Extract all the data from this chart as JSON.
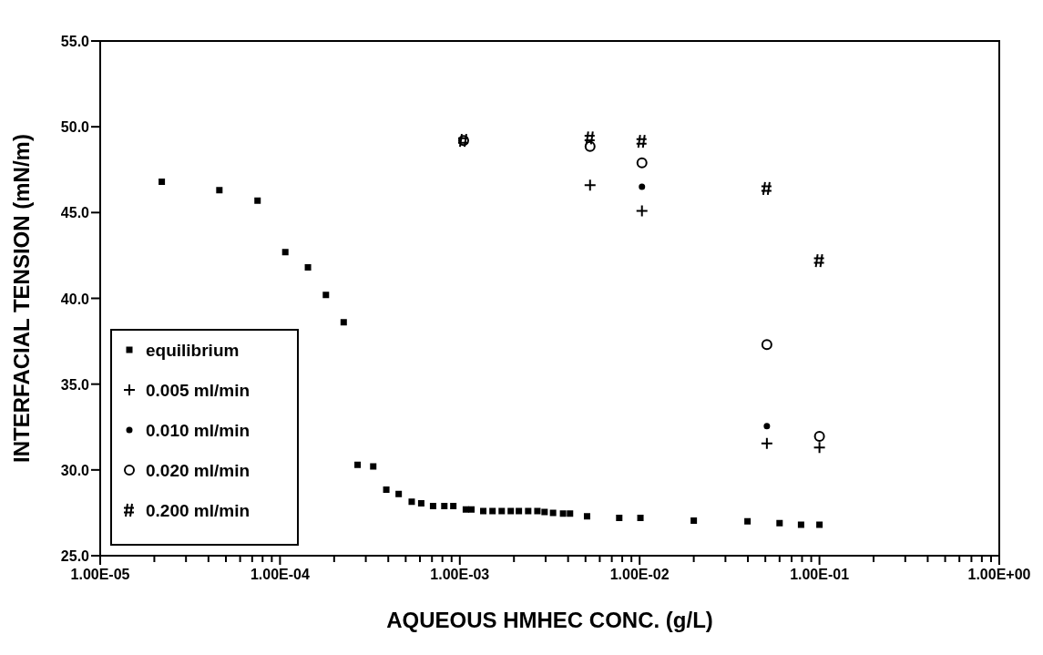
{
  "chart_data": {
    "type": "scatter",
    "xlabel": "AQUEOUS HMHEC CONC. (g/L)",
    "ylabel": "INTERFACIAL TENSION (mN/m)",
    "log": "x",
    "legend": "bottom left",
    "grid": false,
    "xlim": [
      1e-05,
      1
    ],
    "ylim": [
      25,
      55
    ],
    "xticks": [
      {
        "value": 1e-05,
        "label": "1.00E-05"
      },
      {
        "value": 2e-05,
        "label": null
      },
      {
        "value": 3e-05,
        "label": null
      },
      {
        "value": 4e-05,
        "label": null
      },
      {
        "value": 5e-05,
        "label": null
      },
      {
        "value": 6e-05,
        "label": null
      },
      {
        "value": 7e-05,
        "label": null
      },
      {
        "value": 8e-05,
        "label": null
      },
      {
        "value": 9e-05,
        "label": null
      },
      {
        "value": 0.0001,
        "label": "1.00E-04"
      },
      {
        "value": 0.0002,
        "label": null
      },
      {
        "value": 0.0003,
        "label": null
      },
      {
        "value": 0.0004,
        "label": null
      },
      {
        "value": 0.0005,
        "label": null
      },
      {
        "value": 0.0006,
        "label": null
      },
      {
        "value": 0.0007,
        "label": null
      },
      {
        "value": 0.0008,
        "label": null
      },
      {
        "value": 0.0009,
        "label": null
      },
      {
        "value": 0.001,
        "label": "1.00E-03"
      },
      {
        "value": 0.002,
        "label": null
      },
      {
        "value": 0.003,
        "label": null
      },
      {
        "value": 0.004,
        "label": null
      },
      {
        "value": 0.005,
        "label": null
      },
      {
        "value": 0.006,
        "label": null
      },
      {
        "value": 0.007,
        "label": null
      },
      {
        "value": 0.008,
        "label": null
      },
      {
        "value": 0.009,
        "label": null
      },
      {
        "value": 0.01,
        "label": "1.00E-02"
      },
      {
        "value": 0.02,
        "label": null
      },
      {
        "value": 0.03,
        "label": null
      },
      {
        "value": 0.04,
        "label": null
      },
      {
        "value": 0.05,
        "label": null
      },
      {
        "value": 0.06,
        "label": null
      },
      {
        "value": 0.07,
        "label": null
      },
      {
        "value": 0.08,
        "label": null
      },
      {
        "value": 0.09,
        "label": null
      },
      {
        "value": 0.1,
        "label": "1.00E-01"
      },
      {
        "value": 0.2,
        "label": null
      },
      {
        "value": 0.3,
        "label": null
      },
      {
        "value": 0.4,
        "label": null
      },
      {
        "value": 0.5,
        "label": null
      },
      {
        "value": 0.6,
        "label": null
      },
      {
        "value": 0.7,
        "label": null
      },
      {
        "value": 0.8,
        "label": null
      },
      {
        "value": 0.9,
        "label": null
      },
      {
        "value": 1,
        "label": "1.00E+00"
      }
    ],
    "yticks": [
      {
        "value": 25,
        "label": "25.0"
      },
      {
        "value": 30,
        "label": "30.0"
      },
      {
        "value": 35,
        "label": "35.0"
      },
      {
        "value": 40,
        "label": "40.0"
      },
      {
        "value": 45,
        "label": "45.0"
      },
      {
        "value": 50,
        "label": "50.0"
      },
      {
        "value": 55,
        "label": "55.0"
      }
    ],
    "series": [
      {
        "name": "equilibrium",
        "color": "#000000",
        "marker": "square",
        "x": [
          2.2e-05,
          4.6e-05,
          7.5e-05,
          0.000107,
          0.000143,
          0.00018,
          0.000226,
          0.00027,
          0.00033,
          0.00039,
          0.000457,
          0.00054,
          0.00061,
          0.00071,
          0.00082,
          0.00092,
          0.00108,
          0.00116,
          0.00135,
          0.00152,
          0.00171,
          0.00192,
          0.00213,
          0.0024,
          0.0027,
          0.00296,
          0.0033,
          0.00375,
          0.0041,
          0.0051,
          0.0077,
          0.0101,
          0.02,
          0.0398,
          0.06,
          0.079,
          0.1
        ],
        "values": [
          46.8,
          46.3,
          45.7,
          42.7,
          41.8,
          40.2,
          38.6,
          30.3,
          30.2,
          28.85,
          28.6,
          28.15,
          28.05,
          27.9,
          27.9,
          27.9,
          27.7,
          27.7,
          27.6,
          27.6,
          27.6,
          27.6,
          27.6,
          27.6,
          27.6,
          27.55,
          27.5,
          27.45,
          27.45,
          27.3,
          27.2,
          27.2,
          27.05,
          27,
          26.9,
          26.8,
          26.8
        ]
      },
      {
        "name": "0.005 ml/min",
        "color": "#000000",
        "marker": "cross",
        "x": [
          0.0053,
          0.0103,
          0.051,
          0.1
        ],
        "values": [
          46.6,
          45.1,
          31.55,
          31.3
        ]
      },
      {
        "name": "0.010 ml/min",
        "color": "#000000",
        "marker": "circle",
        "x": [
          0.0103,
          0.051
        ],
        "values": [
          46.5,
          32.55
        ]
      },
      {
        "name": "0.020 ml/min",
        "color": "#000000",
        "marker": "circle",
        "x": [
          0.00105,
          0.0053,
          0.0103,
          0.051,
          0.1
        ],
        "values": [
          49.2,
          48.85,
          47.9,
          37.3,
          31.95
        ]
      },
      {
        "name": "0.200 ml/min",
        "color": "#000000",
        "marker": "cross",
        "x": [
          0.00105,
          0.0053,
          0.0103,
          0.051,
          0.1
        ],
        "values": [
          49.2,
          49.35,
          49.15,
          46.4,
          42.2
        ]
      }
    ]
  }
}
